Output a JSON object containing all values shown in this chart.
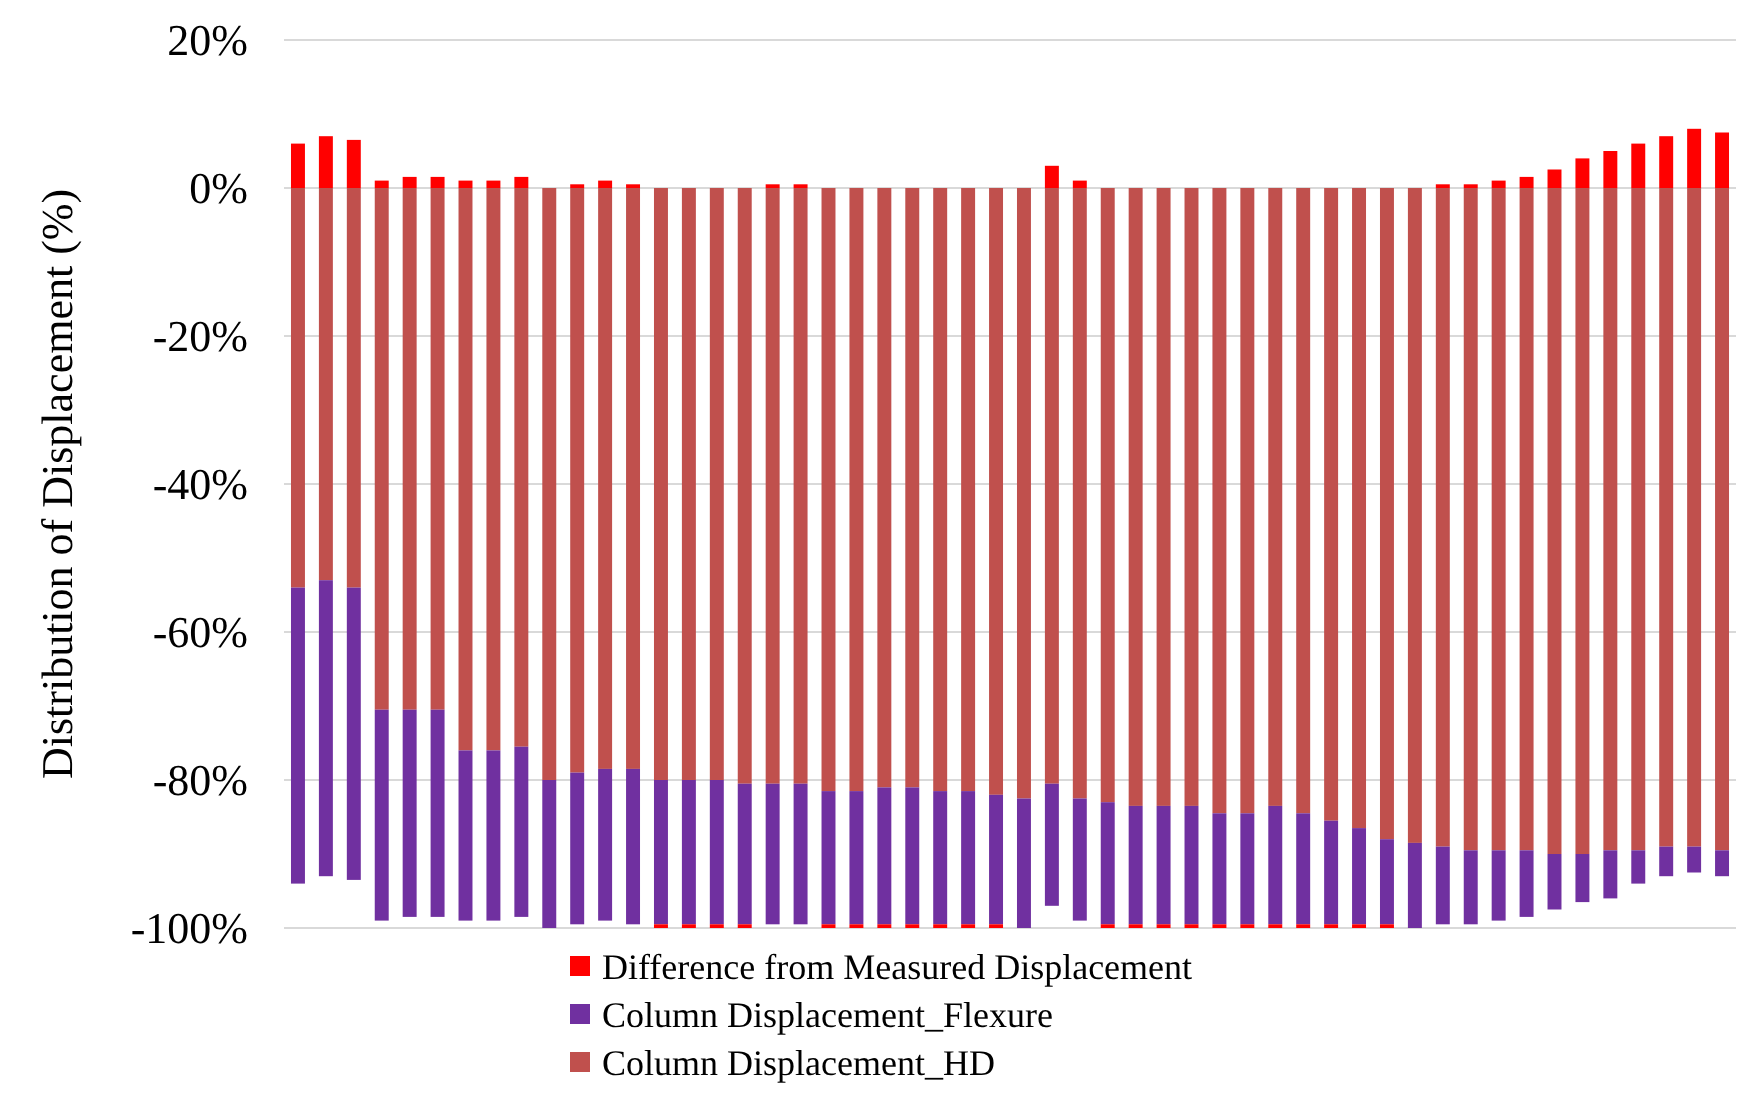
{
  "chart_data": {
    "type": "bar",
    "stacked": true,
    "ylabel": "Distribution of Displacement (%)",
    "categories": [
      null,
      null,
      null,
      null,
      null,
      null,
      null,
      null,
      null,
      null,
      null,
      null,
      null,
      null,
      null,
      null,
      null,
      null,
      null,
      null,
      null,
      null,
      null,
      null,
      null,
      null,
      null,
      null,
      null,
      null,
      null,
      null,
      null,
      null,
      null,
      null,
      null,
      null,
      null,
      null,
      null,
      null,
      null,
      null,
      null,
      null,
      null,
      null,
      null,
      null,
      null,
      null
    ],
    "series": [
      {
        "name": "Column Displacement_HD",
        "color": "#c0504d",
        "values": [
          -54,
          -53,
          -54,
          -70.5,
          -70.5,
          -70.5,
          -76,
          -76,
          -75.5,
          -80,
          -79,
          -78.5,
          -78.5,
          -80,
          -80,
          -80,
          -80.5,
          -80.5,
          -80.5,
          -81.5,
          -81.5,
          -81,
          -81,
          -81.5,
          -81.5,
          -82,
          -82.5,
          -80.5,
          -82.5,
          -83,
          -83.5,
          -83.5,
          -83.5,
          -84.5,
          -84.5,
          -83.5,
          -84.5,
          -85.5,
          -86.5,
          -88,
          -88.5,
          -89,
          -89.5,
          -89.5,
          -89.5,
          -90,
          -90,
          -89.5,
          -89.5,
          -89,
          -89,
          -89.5
        ]
      },
      {
        "name": "Column Displacement_Flexure",
        "color": "#7030a0",
        "values": [
          -40,
          -40,
          -39.5,
          -28.5,
          -28,
          -28,
          -23,
          -23,
          -23,
          -20,
          -20.5,
          -20.5,
          -21,
          -19.5,
          -19.5,
          -19.5,
          -19,
          -19,
          -19,
          -18,
          -18,
          -18.5,
          -18.5,
          -18,
          -18,
          -17.5,
          -17.5,
          -16.5,
          -16.5,
          -16.5,
          -16,
          -16,
          -16,
          -15,
          -15,
          -16,
          -15,
          -14,
          -13,
          -11.5,
          -11.5,
          -10.5,
          -10,
          -9.5,
          -9,
          -7.5,
          -6.5,
          -6.5,
          -4.5,
          -4,
          -3.5,
          -3.5
        ]
      },
      {
        "name": "Difference from Measured Displacement",
        "color": "#ff0000",
        "values": [
          6,
          7,
          6.5,
          1,
          1.5,
          1.5,
          1,
          1,
          1.5,
          0,
          0.5,
          1,
          0.5,
          -0.5,
          -0.5,
          -0.5,
          -0.5,
          0.5,
          0.5,
          -0.5,
          -0.5,
          -0.5,
          -0.5,
          -0.5,
          -0.5,
          -0.5,
          0,
          3,
          1,
          -0.5,
          -0.5,
          -0.5,
          -0.5,
          -0.5,
          -0.5,
          -0.5,
          -0.5,
          -0.5,
          -0.5,
          -0.5,
          0,
          0.5,
          0.5,
          1,
          1.5,
          2.5,
          4,
          5,
          6,
          7,
          8,
          7.5
        ]
      }
    ],
    "ylim": [
      -100,
      20
    ],
    "yticks": [
      {
        "value": 20,
        "label": "20%"
      },
      {
        "value": 0,
        "label": "0%"
      },
      {
        "value": -20,
        "label": "-20%"
      },
      {
        "value": -40,
        "label": "-40%"
      },
      {
        "value": -60,
        "label": "-60%"
      },
      {
        "value": -80,
        "label": "-80%"
      },
      {
        "value": -100,
        "label": "-100%"
      }
    ],
    "grid": "y",
    "legend": "bottom"
  }
}
